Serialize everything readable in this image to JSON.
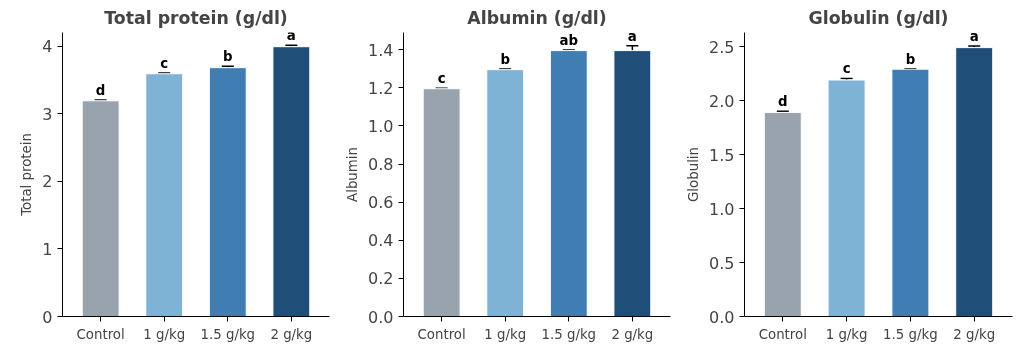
{
  "chart_data": [
    {
      "type": "bar",
      "title": "Total protein (g/dl)",
      "ylabel": "Total protein",
      "categories": [
        "Control",
        "1 g/kg",
        "1.5 g/kg",
        "2 g/kg"
      ],
      "values": [
        3.19,
        3.59,
        3.68,
        3.99
      ],
      "errors": [
        0.01,
        0.01,
        0.02,
        0.02
      ],
      "colors": [
        "#99a3ae",
        "#7fb3d6",
        "#3f7db3",
        "#1f4e79"
      ],
      "ylim": [
        0,
        4.2
      ],
      "yticks": [
        0,
        1,
        2,
        3,
        4
      ],
      "grid": false,
      "annotations": [
        {
          "text": "d",
          "x": "Control",
          "y": 3.2
        },
        {
          "text": "c",
          "x": "1 g/kg",
          "y": 3.6
        },
        {
          "text": "b",
          "x": "1.5 g/kg",
          "y": 3.7
        },
        {
          "text": "a",
          "x": "2 g/kg",
          "y": 4.01
        }
      ]
    },
    {
      "type": "bar",
      "title": "Albumin (g/dl)",
      "ylabel": "Albumin",
      "categories": [
        "Control",
        "1 g/kg",
        "1.5 g/kg",
        "2 g/kg"
      ],
      "values": [
        1.195,
        1.295,
        1.395,
        1.395
      ],
      "errors": [
        0.003,
        0.003,
        0.003,
        0.025
      ],
      "colors": [
        "#99a3ae",
        "#7fb3d6",
        "#3f7db3",
        "#1f4e79"
      ],
      "ylim": [
        0,
        1.49
      ],
      "yticks": [
        {
          "value": 0,
          "label": "0.0"
        },
        0.2,
        0.4,
        0.6,
        0.8,
        {
          "value": 1,
          "label": "1.0"
        },
        1.2,
        1.4
      ],
      "grid": false,
      "annotations": [
        {
          "text": "c",
          "x": "Control",
          "y": 1.198
        },
        {
          "text": "b",
          "x": "1 g/kg",
          "y": 1.298
        },
        {
          "text": "ab",
          "x": "1.5 g/kg",
          "y": 1.398
        },
        {
          "text": "a",
          "x": "2 g/kg",
          "y": 1.42
        }
      ]
    },
    {
      "type": "bar",
      "title": "Globulin (g/dl)",
      "ylabel": "Globulin",
      "categories": [
        "Control",
        "1 g/kg",
        "1.5 g/kg",
        "2 g/kg"
      ],
      "values": [
        1.89,
        2.19,
        2.29,
        2.49
      ],
      "errors": [
        0.01,
        0.015,
        0.005,
        0.015
      ],
      "colors": [
        "#99a3ae",
        "#7fb3d6",
        "#3f7db3",
        "#1f4e79"
      ],
      "ylim": [
        0,
        2.63
      ],
      "yticks": [
        {
          "value": 0,
          "label": "0.0"
        },
        0.5,
        {
          "value": 1,
          "label": "1.0"
        },
        1.5,
        {
          "value": 2,
          "label": "2.0"
        },
        2.5
      ],
      "grid": false,
      "annotations": [
        {
          "text": "d",
          "x": "Control",
          "y": 1.9
        },
        {
          "text": "c",
          "x": "1 g/kg",
          "y": 2.205
        },
        {
          "text": "b",
          "x": "1.5 g/kg",
          "y": 2.295
        },
        {
          "text": "a",
          "x": "2 g/kg",
          "y": 2.505
        }
      ]
    }
  ]
}
